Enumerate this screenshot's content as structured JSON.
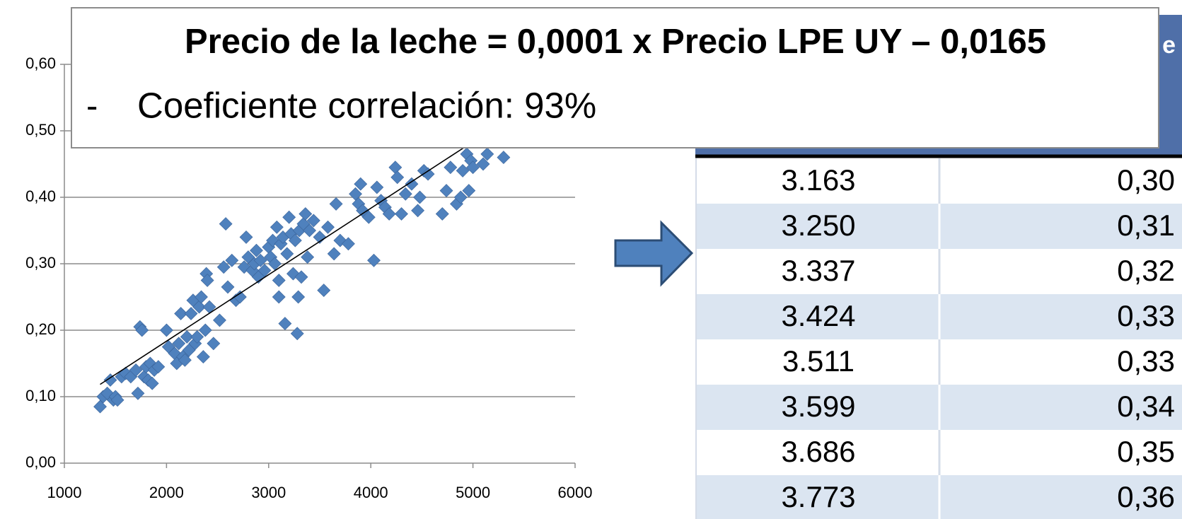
{
  "chart_data": {
    "type": "scatter",
    "x": [
      1350,
      1380,
      1420,
      1450,
      1480,
      1500,
      1520,
      1560,
      1600,
      1650,
      1700,
      1720,
      1740,
      1760,
      1780,
      1800,
      1820,
      1840,
      1860,
      1880,
      1920,
      2000,
      2020,
      2080,
      2100,
      2120,
      2140,
      2160,
      2180,
      2200,
      2220,
      2240,
      2260,
      2280,
      2300,
      2320,
      2340,
      2360,
      2380,
      2390,
      2400,
      2420,
      2460,
      2520,
      2560,
      2580,
      2600,
      2640,
      2680,
      2720,
      2760,
      2780,
      2800,
      2840,
      2860,
      2880,
      2900,
      2920,
      2960,
      3000,
      3020,
      3040,
      3060,
      3080,
      3100,
      3100,
      3120,
      3140,
      3160,
      3180,
      3200,
      3220,
      3240,
      3260,
      3280,
      3290,
      3300,
      3320,
      3340,
      3360,
      3380,
      3400,
      3440,
      3500,
      3540,
      3580,
      3640,
      3660,
      3700,
      3780,
      3850,
      3880,
      3900,
      3920,
      3980,
      4030,
      4060,
      4100,
      4140,
      4180,
      4240,
      4260,
      4300,
      4340,
      4400,
      4460,
      4480,
      4520,
      4560,
      4700,
      4740,
      4780,
      4840,
      4880,
      4900,
      4940,
      4960,
      4980,
      5000,
      5100,
      5140,
      5300
    ],
    "values": [
      0.085,
      0.1,
      0.105,
      0.125,
      0.095,
      0.1,
      0.095,
      0.13,
      0.135,
      0.13,
      0.14,
      0.105,
      0.205,
      0.2,
      0.13,
      0.145,
      0.125,
      0.15,
      0.12,
      0.14,
      0.145,
      0.2,
      0.175,
      0.165,
      0.15,
      0.18,
      0.225,
      0.16,
      0.155,
      0.19,
      0.17,
      0.225,
      0.245,
      0.18,
      0.19,
      0.235,
      0.25,
      0.16,
      0.2,
      0.285,
      0.275,
      0.235,
      0.18,
      0.215,
      0.295,
      0.36,
      0.265,
      0.305,
      0.245,
      0.25,
      0.295,
      0.34,
      0.31,
      0.29,
      0.3,
      0.32,
      0.28,
      0.305,
      0.29,
      0.325,
      0.31,
      0.335,
      0.3,
      0.355,
      0.25,
      0.275,
      0.33,
      0.34,
      0.21,
      0.315,
      0.37,
      0.345,
      0.285,
      0.335,
      0.195,
      0.25,
      0.35,
      0.28,
      0.36,
      0.375,
      0.31,
      0.35,
      0.365,
      0.34,
      0.26,
      0.355,
      0.315,
      0.39,
      0.335,
      0.33,
      0.405,
      0.39,
      0.42,
      0.38,
      0.37,
      0.305,
      0.415,
      0.395,
      0.385,
      0.375,
      0.445,
      0.43,
      0.375,
      0.405,
      0.42,
      0.38,
      0.4,
      0.44,
      0.435,
      0.375,
      0.41,
      0.445,
      0.39,
      0.4,
      0.44,
      0.465,
      0.41,
      0.455,
      0.445,
      0.45,
      0.465,
      0.46
    ],
    "color": "#4f81bd",
    "trendline": {
      "x": [
        1350,
        4915
      ],
      "values": [
        0.1185,
        0.475
      ],
      "color": "#000000"
    },
    "xlim": [
      1000,
      6000
    ],
    "xticks": [
      1000,
      2000,
      3000,
      4000,
      5000,
      6000
    ],
    "ylim": [
      0,
      0.6
    ],
    "yticks": [
      {
        "value": 0,
        "label": "0,00"
      },
      {
        "value": 0.1,
        "label": "0,10"
      },
      {
        "value": 0.2,
        "label": "0,20"
      },
      {
        "value": 0.3,
        "label": "0,30"
      },
      {
        "value": 0.4,
        "label": "0,40"
      },
      {
        "value": 0.5,
        "label": "0,50"
      },
      {
        "value": 0.6,
        "label": "0,60"
      }
    ],
    "grid": true
  },
  "table": {
    "header": "e",
    "rows": [
      [
        "3.163",
        "0,30"
      ],
      [
        "3.250",
        "0,31"
      ],
      [
        "3.337",
        "0,32"
      ],
      [
        "3.424",
        "0,33"
      ],
      [
        "3.511",
        "0,33"
      ],
      [
        "3.599",
        "0,34"
      ],
      [
        "3.686",
        "0,35"
      ],
      [
        "3.773",
        "0,36"
      ]
    ]
  },
  "overlay": {
    "formula": "Precio de la leche = 0,0001 x Precio LPE UY – 0,0165",
    "bullet": "-",
    "text": "Coeficiente correlación: 93%"
  }
}
